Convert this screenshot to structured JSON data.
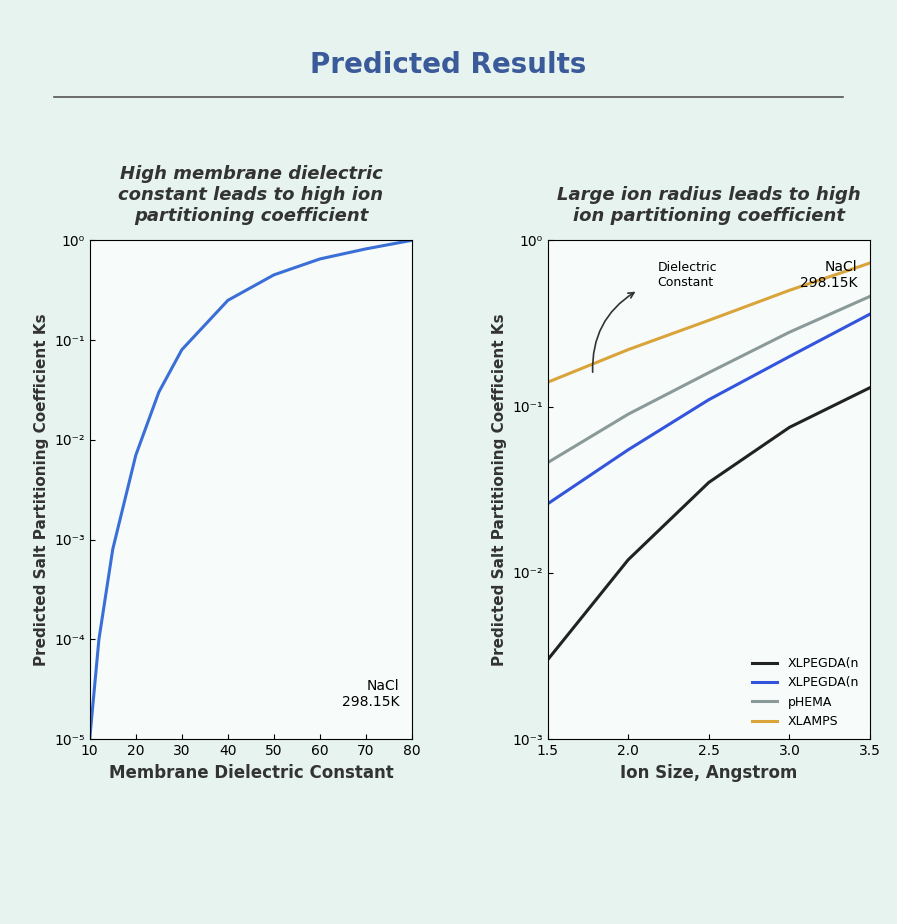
{
  "title": "Predicted Results",
  "chart_data": [
    {
      "type": "line",
      "title": "High membrane dielectric constant leads to high ion partitioning coefficient",
      "x_label": "Membrane Dielectric Constant",
      "y_label": "Predicted Salt Partitioning Coefficient Ks",
      "annotations": [
        "NaCl\n298.15K"
      ],
      "x": [
        10,
        12,
        15,
        20,
        25,
        30,
        40,
        50,
        60,
        70,
        80
      ],
      "series": [
        {
          "name": "NaCl",
          "color": "#3a6fd8",
          "values": [
            1e-05,
            0.0001,
            0.0008,
            0.007,
            0.03,
            0.08,
            0.25,
            0.45,
            0.65,
            0.82,
            1.0
          ]
        }
      ],
      "log": "y",
      "grid": false,
      "xlim": [
        10,
        80
      ],
      "xticks": [
        10,
        20,
        30,
        40,
        50,
        60,
        70,
        80
      ],
      "ylim": [
        1e-05,
        1
      ],
      "yticks": [
        {
          "value": 1e-05,
          "label": "10⁻⁵"
        },
        {
          "value": 0.0001,
          "label": "10⁻⁴"
        },
        {
          "value": 0.001,
          "label": "10⁻³"
        },
        {
          "value": 0.01,
          "label": "10⁻²"
        },
        {
          "value": 0.1,
          "label": "10⁻¹"
        },
        {
          "value": 1,
          "label": "10⁰"
        }
      ]
    },
    {
      "type": "line",
      "title": "Large ion radius leads to high ion partitioning coefficient",
      "x_label": "Ion Size, Angstrom",
      "y_label": "Predicted Salt Partitioning Coefficient Ks",
      "annotations": [
        "NaCl\n298.15K",
        "Dielectric\nConstant"
      ],
      "x": [
        1.5,
        2.0,
        2.5,
        3.0,
        3.5
      ],
      "series": [
        {
          "name": "XLPEGDA(n",
          "color": "#222222",
          "values": [
            0.003,
            0.012,
            0.035,
            0.075,
            0.13
          ]
        },
        {
          "name": "XLPEGDA(n",
          "color": "#3355dd",
          "values": [
            0.026,
            0.055,
            0.11,
            0.2,
            0.36
          ]
        },
        {
          "name": "pHEMA",
          "color": "#8a9a98",
          "values": [
            0.046,
            0.09,
            0.16,
            0.28,
            0.46
          ]
        },
        {
          "name": "XLAMPS",
          "color": "#d9a43a",
          "values": [
            0.14,
            0.22,
            0.33,
            0.5,
            0.73
          ]
        }
      ],
      "log": "y",
      "grid": false,
      "legend": "lower right",
      "xlim": [
        1.5,
        3.5
      ],
      "xticks": [
        1.5,
        2.0,
        2.5,
        3.0,
        3.5
      ],
      "ylim": [
        0.001,
        1
      ],
      "yticks": [
        {
          "value": 0.001,
          "label": "10⁻³"
        },
        {
          "value": 0.01,
          "label": "10⁻²"
        },
        {
          "value": 0.1,
          "label": "10⁻¹"
        },
        {
          "value": 1,
          "label": "10⁰"
        }
      ]
    }
  ]
}
